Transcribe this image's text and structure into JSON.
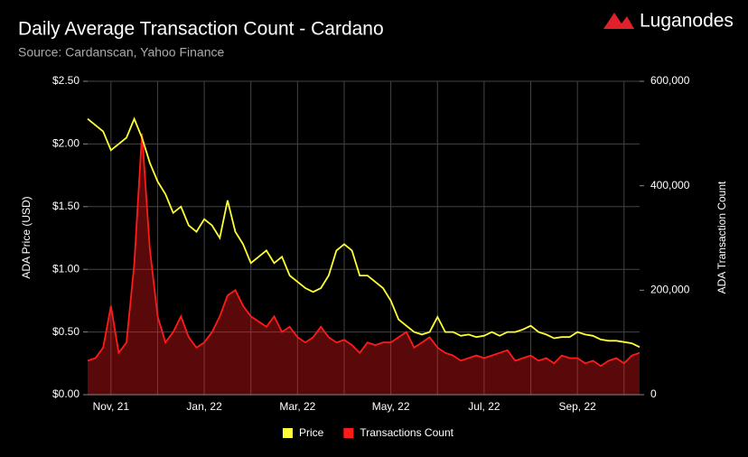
{
  "brand": "Luganodes",
  "chart_data": {
    "type": "line",
    "title": "Daily Average Transaction Count - Cardano",
    "subtitle": "Source: Cardanscan, Yahoo Finance",
    "y_label": "ADA Price (USD)",
    "y2_label": "ADA Transaction Count",
    "categories": [
      null,
      null,
      null,
      "Nov, 21",
      null,
      null,
      null,
      null,
      null,
      null,
      null,
      null,
      null,
      null,
      null,
      "Jan, 22",
      null,
      null,
      null,
      null,
      null,
      null,
      null,
      null,
      null,
      null,
      null,
      "Mar, 22",
      null,
      null,
      null,
      null,
      null,
      null,
      null,
      null,
      null,
      null,
      null,
      "May, 22",
      null,
      null,
      null,
      null,
      null,
      null,
      null,
      null,
      null,
      null,
      null,
      "Jul, 22",
      null,
      null,
      null,
      null,
      null,
      null,
      null,
      null,
      null,
      null,
      null,
      "Sep, 22",
      null,
      null,
      null,
      null,
      null,
      null,
      null,
      null
    ],
    "ylim": [
      0,
      2.5
    ],
    "yticks": [
      {
        "value": 0,
        "label": "$0.00"
      },
      {
        "value": 0.5,
        "label": "$0.50"
      },
      {
        "value": 1,
        "label": "$1.00"
      },
      {
        "value": 1.5,
        "label": "$1.50"
      },
      {
        "value": 2,
        "label": "$2.00"
      },
      {
        "value": 2.5,
        "label": "$2.50"
      }
    ],
    "y2lim": [
      0,
      600000
    ],
    "y2ticks": [
      0,
      {
        "value": 200000,
        "label": "200,000"
      },
      {
        "value": 400000,
        "label": "400,000"
      },
      {
        "value": 600000,
        "label": "600,000"
      }
    ],
    "grid": true,
    "legend": "bottom",
    "series": [
      {
        "name": "Price",
        "color": "#ffff33",
        "values": [
          2.2,
          2.15,
          2.1,
          1.95,
          2.0,
          2.05,
          2.2,
          2.05,
          1.85,
          1.7,
          1.6,
          1.45,
          1.5,
          1.35,
          1.3,
          1.4,
          1.35,
          1.25,
          1.55,
          1.3,
          1.2,
          1.05,
          1.1,
          1.15,
          1.05,
          1.1,
          0.95,
          0.9,
          0.85,
          0.82,
          0.85,
          0.95,
          1.15,
          1.2,
          1.15,
          0.95,
          0.95,
          0.9,
          0.85,
          0.75,
          0.6,
          0.55,
          0.5,
          0.48,
          0.5,
          0.62,
          0.5,
          0.5,
          0.47,
          0.48,
          0.46,
          0.47,
          0.5,
          0.47,
          0.5,
          0.5,
          0.52,
          0.55,
          0.5,
          0.48,
          0.45,
          0.46,
          0.46,
          0.5,
          0.48,
          0.47,
          0.44,
          0.43,
          0.43,
          0.42,
          0.41,
          0.38
        ]
      },
      {
        "name": "Transactions Count",
        "color": "#ff1a1a",
        "area": true,
        "axis": "y2",
        "values": [
          65000,
          70000,
          90000,
          170000,
          80000,
          100000,
          250000,
          500000,
          280000,
          150000,
          100000,
          120000,
          150000,
          110000,
          90000,
          100000,
          120000,
          150000,
          190000,
          200000,
          170000,
          150000,
          140000,
          130000,
          150000,
          120000,
          130000,
          110000,
          100000,
          110000,
          130000,
          110000,
          100000,
          105000,
          95000,
          80000,
          100000,
          95000,
          100000,
          100000,
          110000,
          120000,
          90000,
          100000,
          110000,
          90000,
          80000,
          75000,
          65000,
          70000,
          75000,
          70000,
          75000,
          80000,
          85000,
          65000,
          70000,
          75000,
          65000,
          70000,
          60000,
          75000,
          70000,
          70000,
          60000,
          65000,
          55000,
          65000,
          70000,
          60000,
          75000,
          80000
        ]
      }
    ]
  }
}
